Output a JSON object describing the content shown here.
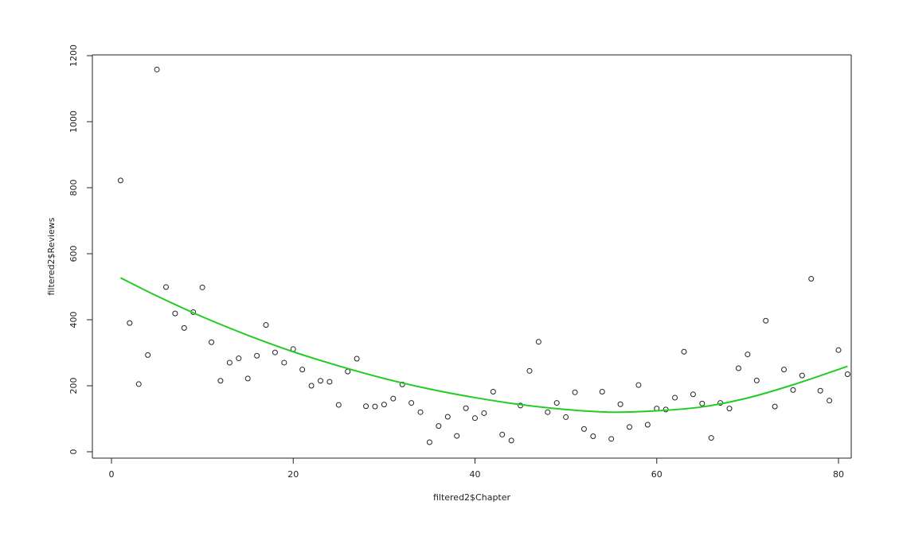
{
  "chart_data": {
    "type": "scatter",
    "title": "",
    "xlabel": "filtered2$Chapter",
    "ylabel": "filtered2$Reviews",
    "xlim": [
      -2.3,
      81.3
    ],
    "ylim": [
      -20,
      1200
    ],
    "x_ticks": [
      0,
      20,
      40,
      60,
      80
    ],
    "y_ticks": [
      0,
      200,
      400,
      600,
      800,
      1000,
      1200
    ],
    "x_tick_labels": [
      "0",
      "20",
      "40",
      "60",
      "80"
    ],
    "y_tick_labels": [
      "0",
      "200",
      "400",
      "600",
      "800",
      "1000",
      "1200"
    ],
    "grid": false,
    "points": {
      "x": [
        1,
        2,
        3,
        4,
        5,
        6,
        7,
        8,
        9,
        10,
        11,
        12,
        13,
        14,
        15,
        16,
        17,
        18,
        19,
        20,
        21,
        22,
        23,
        24,
        25,
        26,
        27,
        28,
        29,
        30,
        31,
        32,
        33,
        34,
        35,
        36,
        37,
        38,
        39,
        40,
        41,
        42,
        43,
        44,
        45,
        46,
        47,
        48,
        49,
        50,
        51,
        52,
        53,
        54,
        55,
        56,
        57,
        58,
        59,
        60,
        61,
        62,
        63,
        64,
        65,
        66,
        67,
        68,
        69,
        70,
        71,
        72,
        73,
        74,
        75,
        76,
        77,
        78,
        79,
        80,
        81
      ],
      "y": [
        822,
        390,
        205,
        293,
        1158,
        499,
        419,
        375,
        423,
        498,
        332,
        215,
        270,
        283,
        222,
        291,
        384,
        301,
        270,
        311,
        249,
        200,
        215,
        212,
        142,
        243,
        282,
        138,
        137,
        143,
        161,
        204,
        148,
        120,
        29,
        78,
        106,
        48,
        132,
        102,
        117,
        182,
        52,
        34,
        140,
        245,
        333,
        120,
        148,
        105,
        180,
        69,
        47,
        182,
        39,
        144,
        75,
        202,
        82,
        131,
        128,
        164,
        303,
        174,
        146,
        42,
        148,
        131,
        253,
        295,
        216,
        397,
        137,
        249,
        187,
        231,
        524,
        185,
        155,
        308,
        235
      ]
    },
    "fit_curve": {
      "color": "#22cc22",
      "x": [
        1,
        5,
        10,
        15,
        20,
        25,
        30,
        35,
        40,
        45,
        50,
        55,
        60,
        65,
        70,
        75,
        81
      ],
      "y": [
        527,
        472,
        409,
        353,
        303,
        260,
        222,
        190,
        164,
        143,
        128,
        120,
        124,
        136,
        163,
        203,
        259
      ]
    },
    "point_color": "#222222"
  }
}
